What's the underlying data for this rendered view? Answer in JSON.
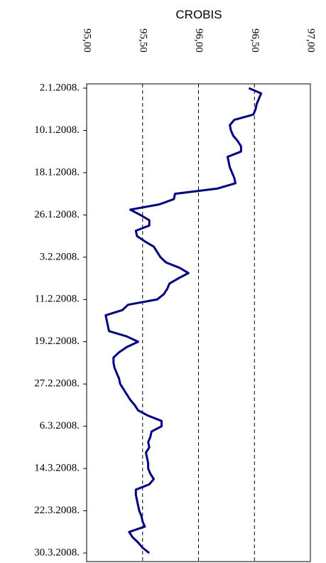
{
  "chart_data": {
    "type": "line",
    "orientation": "horizontal",
    "title": "CROBIS",
    "categories": [
      "2.1.2008.",
      null,
      null,
      null,
      null,
      null,
      null,
      null,
      "10.1.2008.",
      null,
      null,
      null,
      null,
      null,
      null,
      null,
      "18.1.2008.",
      null,
      null,
      null,
      null,
      null,
      null,
      null,
      "26.1.2008.",
      null,
      null,
      null,
      null,
      null,
      null,
      null,
      "3.2.2008.",
      null,
      null,
      null,
      null,
      null,
      null,
      null,
      "11.2.2008.",
      null,
      null,
      null,
      null,
      null,
      null,
      null,
      "19.2.2008.",
      null,
      null,
      null,
      null,
      null,
      null,
      null,
      "27.2.2008.",
      null,
      null,
      null,
      null,
      null,
      null,
      null,
      "6.3.2008.",
      null,
      null,
      null,
      null,
      null,
      null,
      null,
      "14.3.2008.",
      null,
      null,
      null,
      null,
      null,
      null,
      null,
      "22.3.2008.",
      null,
      null,
      null,
      null,
      null,
      null,
      null,
      "30.3.2008."
    ],
    "series": [
      {
        "name": "CROBIS",
        "color": "#000080",
        "values": [
          96.45,
          96.56,
          96.54,
          96.52,
          96.51,
          96.49,
          96.32,
          96.28,
          96.29,
          96.31,
          96.35,
          96.38,
          96.38,
          96.26,
          96.27,
          96.28,
          96.3,
          96.32,
          96.33,
          96.17,
          95.79,
          95.78,
          95.65,
          95.39,
          95.48,
          95.56,
          95.56,
          95.44,
          95.45,
          95.52,
          95.6,
          95.63,
          95.66,
          95.71,
          95.83,
          95.91,
          95.82,
          95.74,
          95.72,
          95.69,
          95.63,
          95.37,
          95.32,
          95.17,
          95.18,
          95.19,
          95.2,
          95.36,
          95.46,
          95.36,
          95.29,
          95.24,
          95.24,
          95.25,
          95.27,
          95.29,
          95.3,
          95.33,
          95.36,
          95.39,
          95.43,
          95.46,
          95.55,
          95.67,
          95.67,
          95.58,
          95.57,
          95.55,
          95.56,
          95.53,
          95.54,
          95.55,
          95.55,
          95.57,
          95.6,
          95.56,
          95.44,
          95.44,
          95.45,
          95.46,
          95.47,
          95.49,
          95.5,
          95.52,
          95.38,
          95.41,
          95.46,
          95.5,
          95.56
        ]
      }
    ],
    "xlim": [
      95,
      97
    ],
    "xticks": [
      {
        "value": 95,
        "label": "95,00"
      },
      {
        "value": 95.5,
        "label": "95,50"
      },
      {
        "value": 96,
        "label": "96,00"
      },
      {
        "value": 96.5,
        "label": "96,50"
      },
      {
        "value": 97,
        "label": "97,00"
      }
    ],
    "grid": true
  }
}
